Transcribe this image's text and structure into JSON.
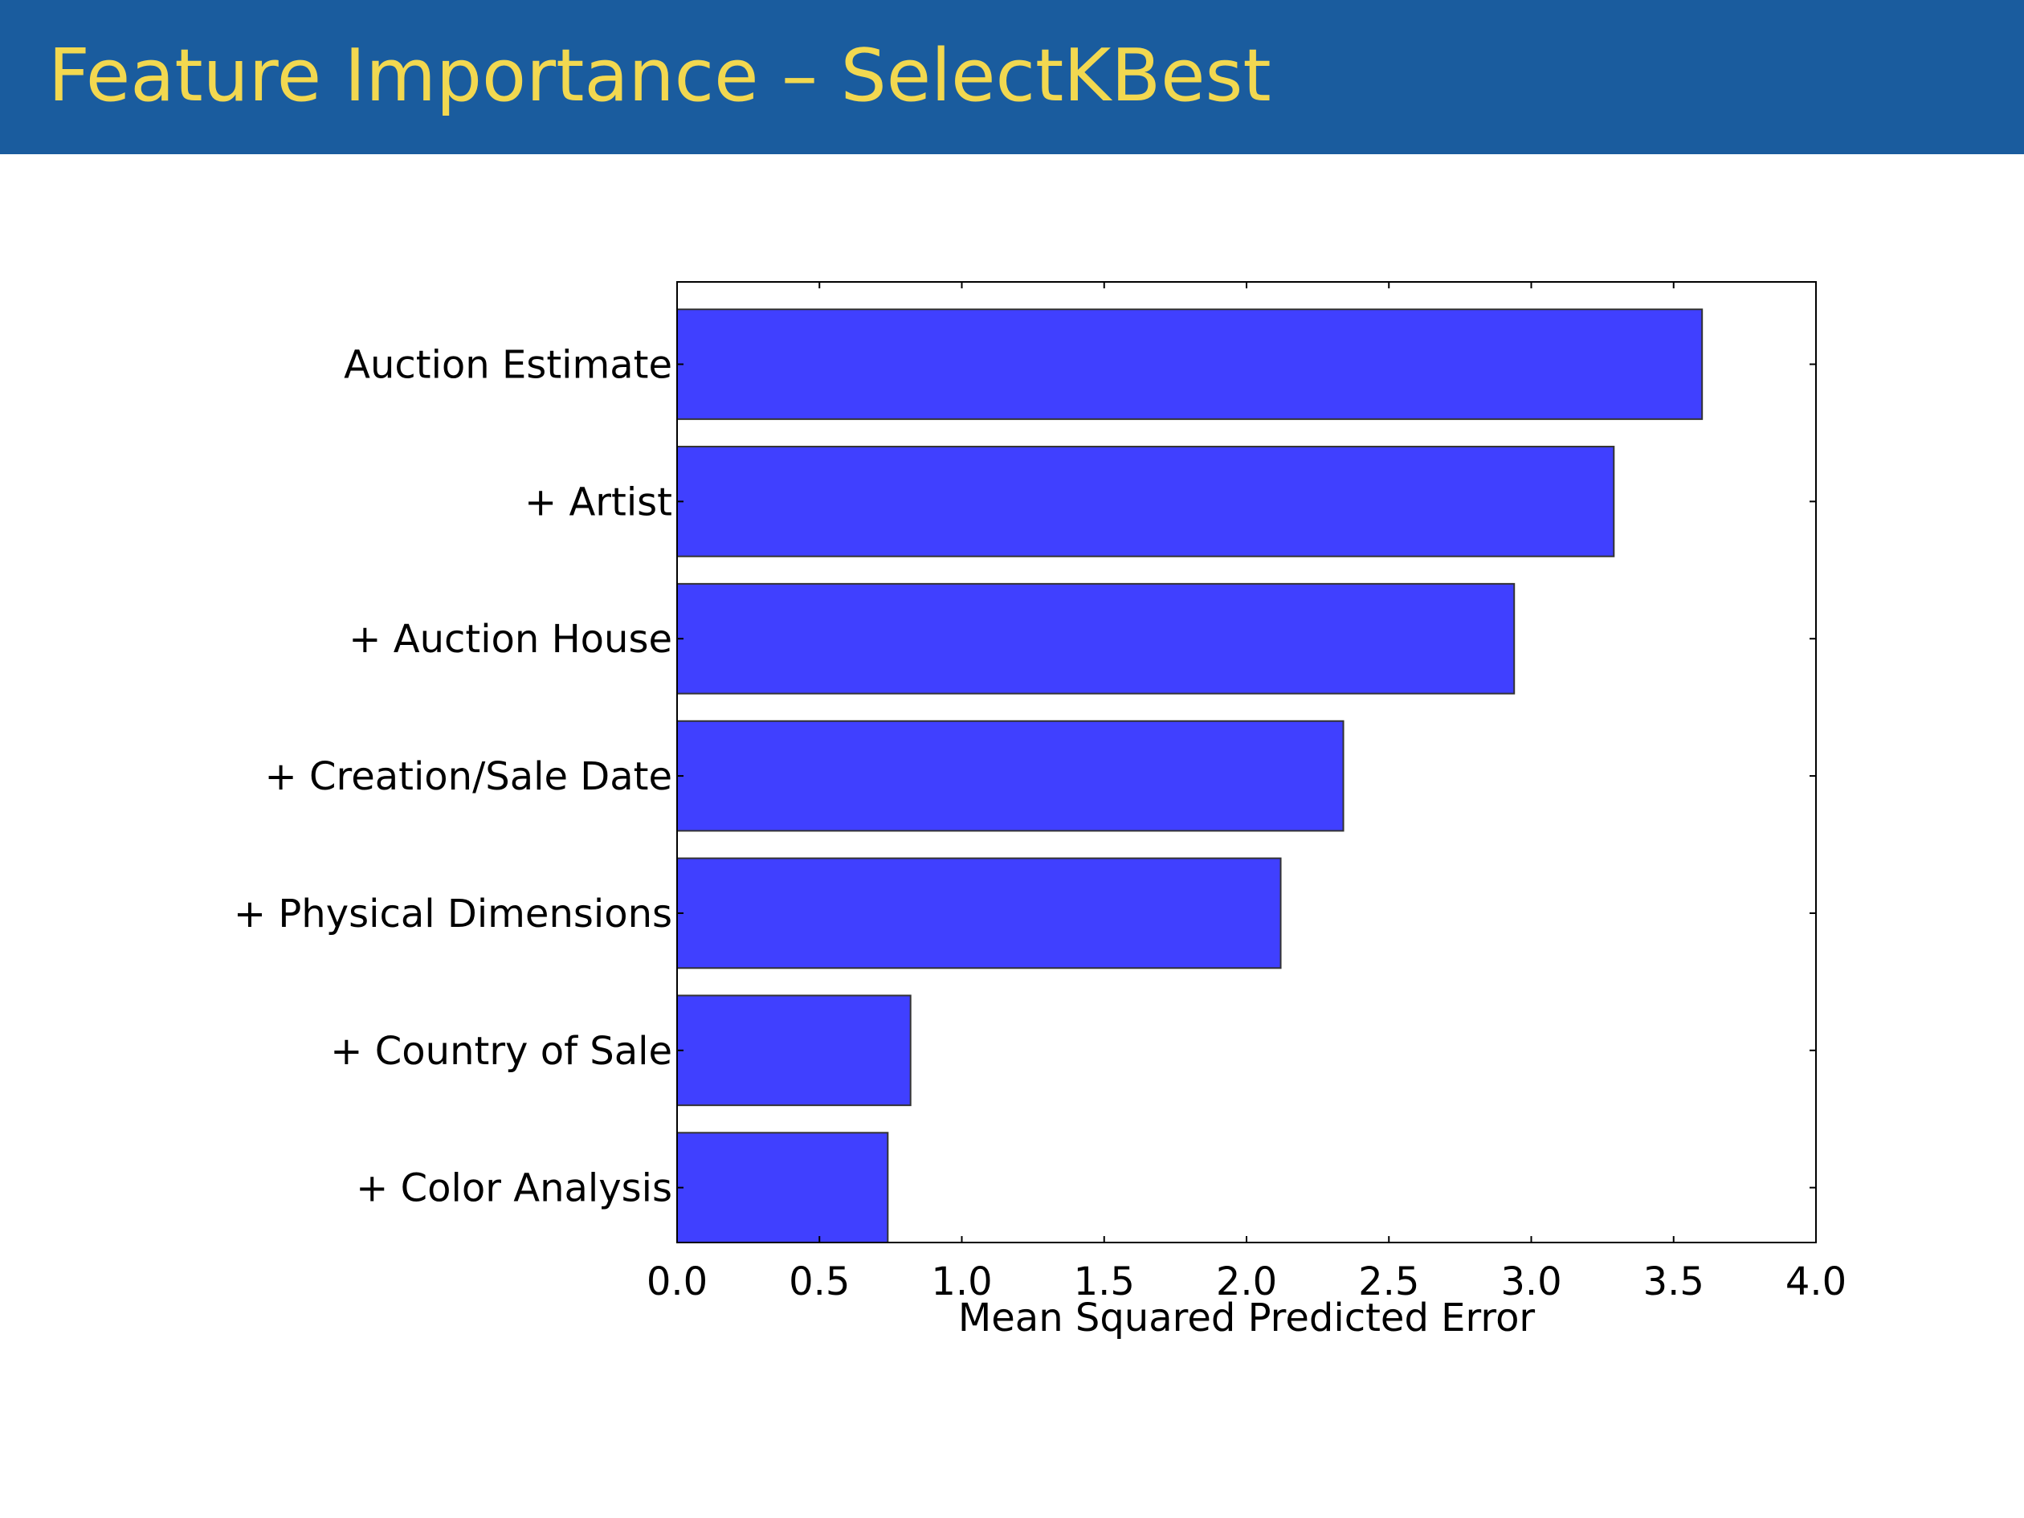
{
  "slide": {
    "title": "Feature Importance – SelectKBest",
    "title_color": "#f2d850",
    "header_color": "#1a5c9e"
  },
  "chart_data": {
    "type": "bar",
    "orientation": "horizontal",
    "categories": [
      "Auction Estimate",
      "+ Artist",
      "+ Auction House",
      "+ Creation/Sale Date",
      "+ Physical Dimensions",
      "+ Country of Sale",
      "+ Color Analysis"
    ],
    "values": [
      3.6,
      3.29,
      2.94,
      2.34,
      2.12,
      0.82,
      0.74
    ],
    "xlabel": "Mean Squared Predicted Error",
    "ylabel": "",
    "xlim": [
      0,
      4
    ],
    "xticks": [
      "0.0",
      "0.5",
      "1.0",
      "1.5",
      "2.0",
      "2.5",
      "3.0",
      "3.5",
      "4.0"
    ],
    "grid": false,
    "bar_color": "#4040ff"
  }
}
